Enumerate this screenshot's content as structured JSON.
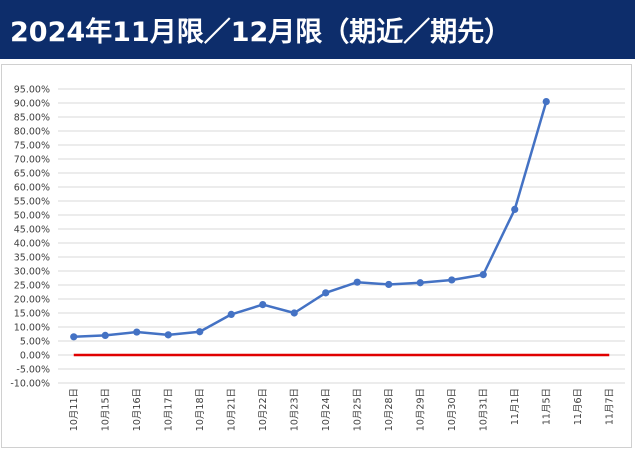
{
  "title": "2024年11月限／12月限（期近／期先）",
  "chart_data": {
    "type": "line",
    "title": "2024年11月限／12月限（期近／期先）",
    "xlabel": "",
    "ylabel": "",
    "categories": [
      "10月11日",
      "10月15日",
      "10月16日",
      "10月17日",
      "10月18日",
      "10月21日",
      "10月22日",
      "10月23日",
      "10月24日",
      "10月25日",
      "10月28日",
      "10月29日",
      "10月30日",
      "10月31日",
      "11月1日",
      "11月5日",
      "11月6日",
      "11月7日"
    ],
    "series": [
      {
        "values": [
          6.5,
          7.0,
          8.2,
          7.2,
          8.3,
          14.5,
          18.0,
          15.0,
          22.2,
          26.0,
          25.2,
          25.8,
          26.8,
          28.7,
          52.0,
          90.5,
          null,
          null
        ],
        "color": "#4472c4",
        "marker": true
      },
      {
        "values": [
          0,
          0,
          0,
          0,
          0,
          0,
          0,
          0,
          0,
          0,
          0,
          0,
          0,
          0,
          0,
          0,
          0,
          0
        ],
        "color": "#e00000",
        "marker": false
      }
    ],
    "ylim": [
      -10,
      95
    ],
    "yticks": [
      -10,
      -5,
      0,
      5,
      10,
      15,
      20,
      25,
      30,
      35,
      40,
      45,
      50,
      55,
      60,
      65,
      70,
      75,
      80,
      85,
      90,
      95
    ],
    "ytick_format": "percent_2dp",
    "grid": true,
    "legend": "none"
  }
}
